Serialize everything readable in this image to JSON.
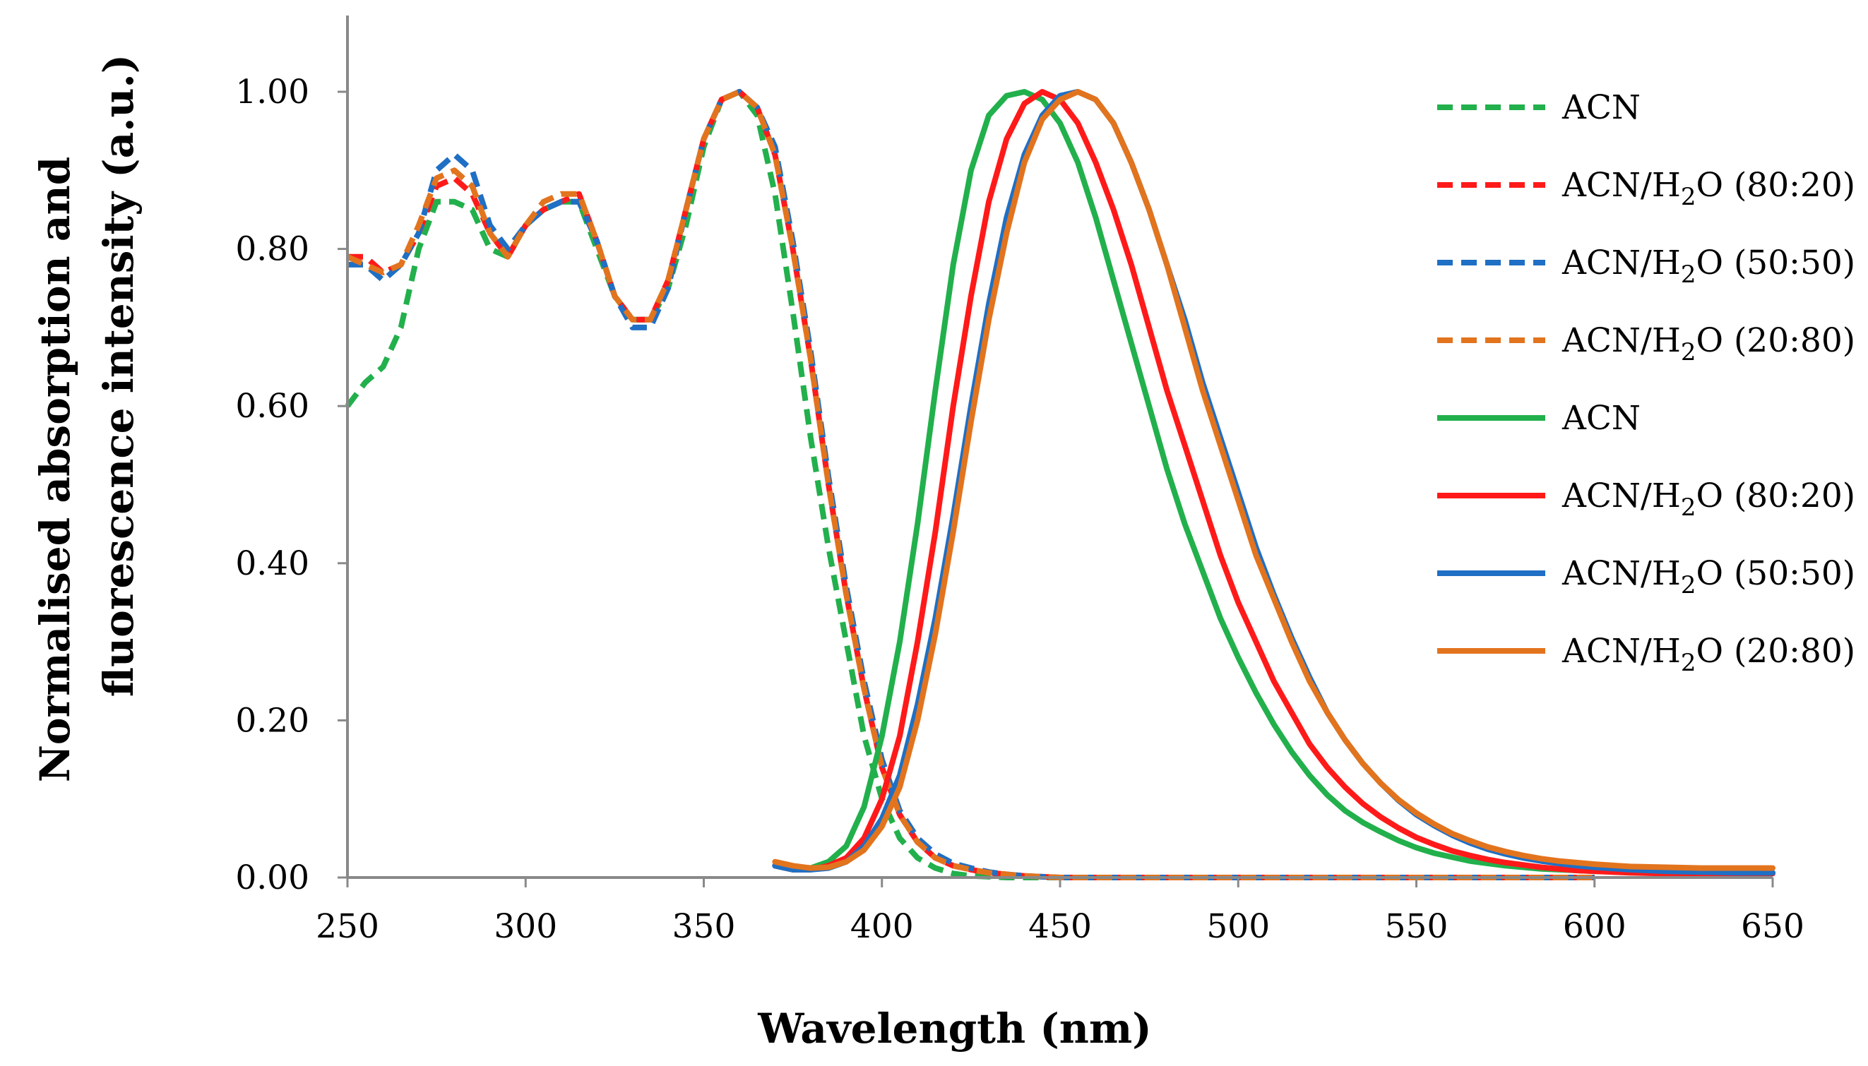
{
  "chart_data": {
    "type": "line",
    "title": "",
    "xlabel": "Wavelength (nm)",
    "ylabel_line1": "Normalised absorption and",
    "ylabel_line2": "fluorescence intensity (a.u.)",
    "xlim": [
      250,
      650
    ],
    "ylim": [
      0,
      1.1
    ],
    "xticks": [
      250,
      300,
      350,
      400,
      450,
      500,
      550,
      600,
      650
    ],
    "xtick_labels": [
      "250",
      "300",
      "350",
      "400",
      "450",
      "500",
      "550",
      "600",
      "650"
    ],
    "yticks": [
      0,
      0.2,
      0.4,
      0.6,
      0.8,
      1.0
    ],
    "ytick_labels": [
      "0.00",
      "0.20",
      "0.40",
      "0.60",
      "0.80",
      "1.00"
    ],
    "grid": false,
    "legend_position": "right",
    "series": [
      {
        "name": "ACN",
        "label_prefix": "ACN",
        "label_sub": "",
        "label_suffix": "",
        "kind": "absorption",
        "style": "dashed",
        "color": "#22b04c",
        "x": [
          250,
          255,
          260,
          265,
          270,
          275,
          280,
          285,
          290,
          295,
          300,
          305,
          310,
          315,
          320,
          325,
          330,
          335,
          340,
          345,
          350,
          355,
          360,
          365,
          370,
          375,
          380,
          385,
          390,
          395,
          400,
          405,
          410,
          415,
          420,
          425,
          430,
          435,
          440,
          450,
          500,
          550,
          600
        ],
        "y": [
          0.6,
          0.63,
          0.65,
          0.7,
          0.8,
          0.86,
          0.86,
          0.85,
          0.8,
          0.79,
          0.83,
          0.85,
          0.86,
          0.86,
          0.8,
          0.74,
          0.71,
          0.71,
          0.75,
          0.83,
          0.93,
          0.99,
          1.0,
          0.97,
          0.87,
          0.72,
          0.56,
          0.42,
          0.3,
          0.18,
          0.1,
          0.05,
          0.025,
          0.012,
          0.005,
          0.002,
          0.001,
          0.0,
          0.0,
          0.0,
          0.0,
          0.0,
          0.0
        ]
      },
      {
        "name": "ACN/H2O (80:20)",
        "label_prefix": "ACN/H",
        "label_sub": "2",
        "label_suffix": "O (80:20)",
        "kind": "absorption",
        "style": "dashed",
        "color": "#ff1a1a",
        "x": [
          250,
          255,
          260,
          265,
          270,
          275,
          280,
          285,
          290,
          295,
          300,
          305,
          310,
          315,
          320,
          325,
          330,
          335,
          340,
          345,
          350,
          355,
          360,
          365,
          370,
          375,
          380,
          385,
          390,
          395,
          400,
          405,
          410,
          415,
          420,
          425,
          430,
          435,
          440,
          450,
          500,
          550,
          600
        ],
        "y": [
          0.79,
          0.79,
          0.77,
          0.78,
          0.82,
          0.88,
          0.89,
          0.87,
          0.82,
          0.79,
          0.83,
          0.85,
          0.86,
          0.87,
          0.81,
          0.74,
          0.71,
          0.71,
          0.76,
          0.85,
          0.94,
          0.99,
          1.0,
          0.98,
          0.92,
          0.8,
          0.66,
          0.5,
          0.36,
          0.24,
          0.14,
          0.08,
          0.045,
          0.025,
          0.015,
          0.01,
          0.006,
          0.004,
          0.002,
          0.0,
          0.0,
          0.0,
          0.0
        ]
      },
      {
        "name": "ACN/H2O (50:50)",
        "label_prefix": "ACN/H",
        "label_sub": "2",
        "label_suffix": "O (50:50)",
        "kind": "absorption",
        "style": "dashed",
        "color": "#1f6fc4",
        "x": [
          250,
          255,
          260,
          265,
          270,
          275,
          280,
          285,
          290,
          295,
          300,
          305,
          310,
          315,
          320,
          325,
          330,
          335,
          340,
          345,
          350,
          355,
          360,
          365,
          370,
          375,
          380,
          385,
          390,
          395,
          400,
          405,
          410,
          415,
          420,
          425,
          430,
          435,
          440,
          450,
          500,
          550,
          600
        ],
        "y": [
          0.78,
          0.78,
          0.76,
          0.78,
          0.82,
          0.9,
          0.92,
          0.9,
          0.83,
          0.8,
          0.83,
          0.85,
          0.86,
          0.86,
          0.81,
          0.74,
          0.7,
          0.7,
          0.75,
          0.85,
          0.94,
          0.99,
          1.0,
          0.98,
          0.93,
          0.81,
          0.67,
          0.51,
          0.37,
          0.25,
          0.15,
          0.085,
          0.05,
          0.03,
          0.018,
          0.012,
          0.007,
          0.004,
          0.002,
          0.0,
          0.0,
          0.0,
          0.0
        ]
      },
      {
        "name": "ACN/H2O (20:80)",
        "label_prefix": "ACN/H",
        "label_sub": "2",
        "label_suffix": "O (20:80)",
        "kind": "absorption",
        "style": "dashed",
        "color": "#e2741e",
        "x": [
          250,
          255,
          260,
          265,
          270,
          275,
          280,
          285,
          290,
          295,
          300,
          305,
          310,
          315,
          320,
          325,
          330,
          335,
          340,
          345,
          350,
          355,
          360,
          365,
          370,
          375,
          380,
          385,
          390,
          395,
          400,
          405,
          410,
          415,
          420,
          425,
          430,
          435,
          440,
          450,
          500,
          550,
          600
        ],
        "y": [
          0.79,
          0.78,
          0.77,
          0.78,
          0.83,
          0.89,
          0.9,
          0.88,
          0.82,
          0.79,
          0.83,
          0.86,
          0.87,
          0.87,
          0.81,
          0.74,
          0.71,
          0.71,
          0.76,
          0.85,
          0.94,
          0.99,
          1.0,
          0.98,
          0.92,
          0.8,
          0.66,
          0.5,
          0.36,
          0.24,
          0.14,
          0.08,
          0.045,
          0.025,
          0.015,
          0.01,
          0.006,
          0.004,
          0.002,
          0.0,
          0.0,
          0.0,
          0.0
        ]
      },
      {
        "name": "ACN",
        "label_prefix": "ACN",
        "label_sub": "",
        "label_suffix": "",
        "kind": "fluorescence",
        "style": "solid",
        "color": "#22b04c",
        "x": [
          370,
          375,
          380,
          385,
          390,
          395,
          400,
          405,
          410,
          415,
          420,
          425,
          430,
          435,
          440,
          445,
          450,
          455,
          460,
          465,
          470,
          475,
          480,
          485,
          490,
          495,
          500,
          505,
          510,
          515,
          520,
          525,
          530,
          535,
          540,
          545,
          550,
          555,
          560,
          565,
          570,
          575,
          580,
          585,
          590,
          595,
          600,
          610,
          620,
          630,
          640,
          650
        ],
        "y": [
          0.015,
          0.01,
          0.012,
          0.02,
          0.04,
          0.09,
          0.18,
          0.3,
          0.45,
          0.62,
          0.78,
          0.9,
          0.97,
          0.995,
          1.0,
          0.99,
          0.96,
          0.91,
          0.84,
          0.76,
          0.68,
          0.6,
          0.52,
          0.45,
          0.39,
          0.33,
          0.28,
          0.235,
          0.195,
          0.16,
          0.13,
          0.105,
          0.085,
          0.07,
          0.058,
          0.047,
          0.038,
          0.031,
          0.026,
          0.021,
          0.018,
          0.015,
          0.013,
          0.011,
          0.01,
          0.009,
          0.008,
          0.007,
          0.006,
          0.006,
          0.006,
          0.006
        ]
      },
      {
        "name": "ACN/H2O (80:20)",
        "label_prefix": "ACN/H",
        "label_sub": "2",
        "label_suffix": "O (80:20)",
        "kind": "fluorescence",
        "style": "solid",
        "color": "#ff1a1a",
        "x": [
          370,
          375,
          380,
          385,
          390,
          395,
          400,
          405,
          410,
          415,
          420,
          425,
          430,
          435,
          440,
          445,
          450,
          455,
          460,
          465,
          470,
          475,
          480,
          485,
          490,
          495,
          500,
          505,
          510,
          515,
          520,
          525,
          530,
          535,
          540,
          545,
          550,
          555,
          560,
          565,
          570,
          575,
          580,
          585,
          590,
          595,
          600,
          610,
          620,
          630,
          640,
          650
        ],
        "y": [
          0.015,
          0.01,
          0.01,
          0.015,
          0.025,
          0.05,
          0.1,
          0.18,
          0.3,
          0.44,
          0.6,
          0.74,
          0.86,
          0.94,
          0.985,
          1.0,
          0.99,
          0.96,
          0.91,
          0.85,
          0.78,
          0.7,
          0.62,
          0.55,
          0.48,
          0.41,
          0.35,
          0.3,
          0.25,
          0.21,
          0.17,
          0.14,
          0.115,
          0.094,
          0.077,
          0.063,
          0.051,
          0.042,
          0.034,
          0.028,
          0.023,
          0.019,
          0.016,
          0.013,
          0.011,
          0.009,
          0.008,
          0.006,
          0.005,
          0.005,
          0.005,
          0.005
        ]
      },
      {
        "name": "ACN/H2O (50:50)",
        "label_prefix": "ACN/H",
        "label_sub": "2",
        "label_suffix": "O (50:50)",
        "kind": "fluorescence",
        "style": "solid",
        "color": "#1f6fc4",
        "x": [
          370,
          375,
          380,
          385,
          390,
          395,
          400,
          405,
          410,
          415,
          420,
          425,
          430,
          435,
          440,
          445,
          450,
          455,
          460,
          465,
          470,
          475,
          480,
          485,
          490,
          495,
          500,
          505,
          510,
          515,
          520,
          525,
          530,
          535,
          540,
          545,
          550,
          555,
          560,
          565,
          570,
          575,
          580,
          585,
          590,
          595,
          600,
          610,
          620,
          630,
          640,
          650
        ],
        "y": [
          0.015,
          0.01,
          0.01,
          0.012,
          0.02,
          0.04,
          0.075,
          0.13,
          0.22,
          0.33,
          0.46,
          0.6,
          0.73,
          0.84,
          0.92,
          0.97,
          0.995,
          1.0,
          0.99,
          0.96,
          0.91,
          0.85,
          0.78,
          0.71,
          0.63,
          0.56,
          0.49,
          0.42,
          0.36,
          0.305,
          0.255,
          0.21,
          0.175,
          0.145,
          0.12,
          0.098,
          0.08,
          0.066,
          0.054,
          0.044,
          0.036,
          0.03,
          0.025,
          0.021,
          0.018,
          0.015,
          0.013,
          0.01,
          0.008,
          0.007,
          0.006,
          0.006
        ]
      },
      {
        "name": "ACN/H2O (20:80)",
        "label_prefix": "ACN/H",
        "label_sub": "2",
        "label_suffix": "O (20:80)",
        "kind": "fluorescence",
        "style": "solid",
        "color": "#e2741e",
        "x": [
          370,
          375,
          380,
          385,
          390,
          395,
          400,
          405,
          410,
          415,
          420,
          425,
          430,
          435,
          440,
          445,
          450,
          455,
          460,
          465,
          470,
          475,
          480,
          485,
          490,
          495,
          500,
          505,
          510,
          515,
          520,
          525,
          530,
          535,
          540,
          545,
          550,
          555,
          560,
          565,
          570,
          575,
          580,
          585,
          590,
          595,
          600,
          610,
          620,
          630,
          640,
          650
        ],
        "y": [
          0.02,
          0.015,
          0.012,
          0.013,
          0.02,
          0.035,
          0.065,
          0.115,
          0.2,
          0.31,
          0.44,
          0.58,
          0.71,
          0.82,
          0.91,
          0.965,
          0.99,
          1.0,
          0.99,
          0.96,
          0.91,
          0.85,
          0.78,
          0.7,
          0.62,
          0.55,
          0.48,
          0.41,
          0.355,
          0.3,
          0.25,
          0.21,
          0.175,
          0.145,
          0.12,
          0.099,
          0.082,
          0.068,
          0.056,
          0.047,
          0.039,
          0.033,
          0.028,
          0.024,
          0.021,
          0.019,
          0.017,
          0.014,
          0.013,
          0.012,
          0.012,
          0.012
        ]
      }
    ]
  }
}
